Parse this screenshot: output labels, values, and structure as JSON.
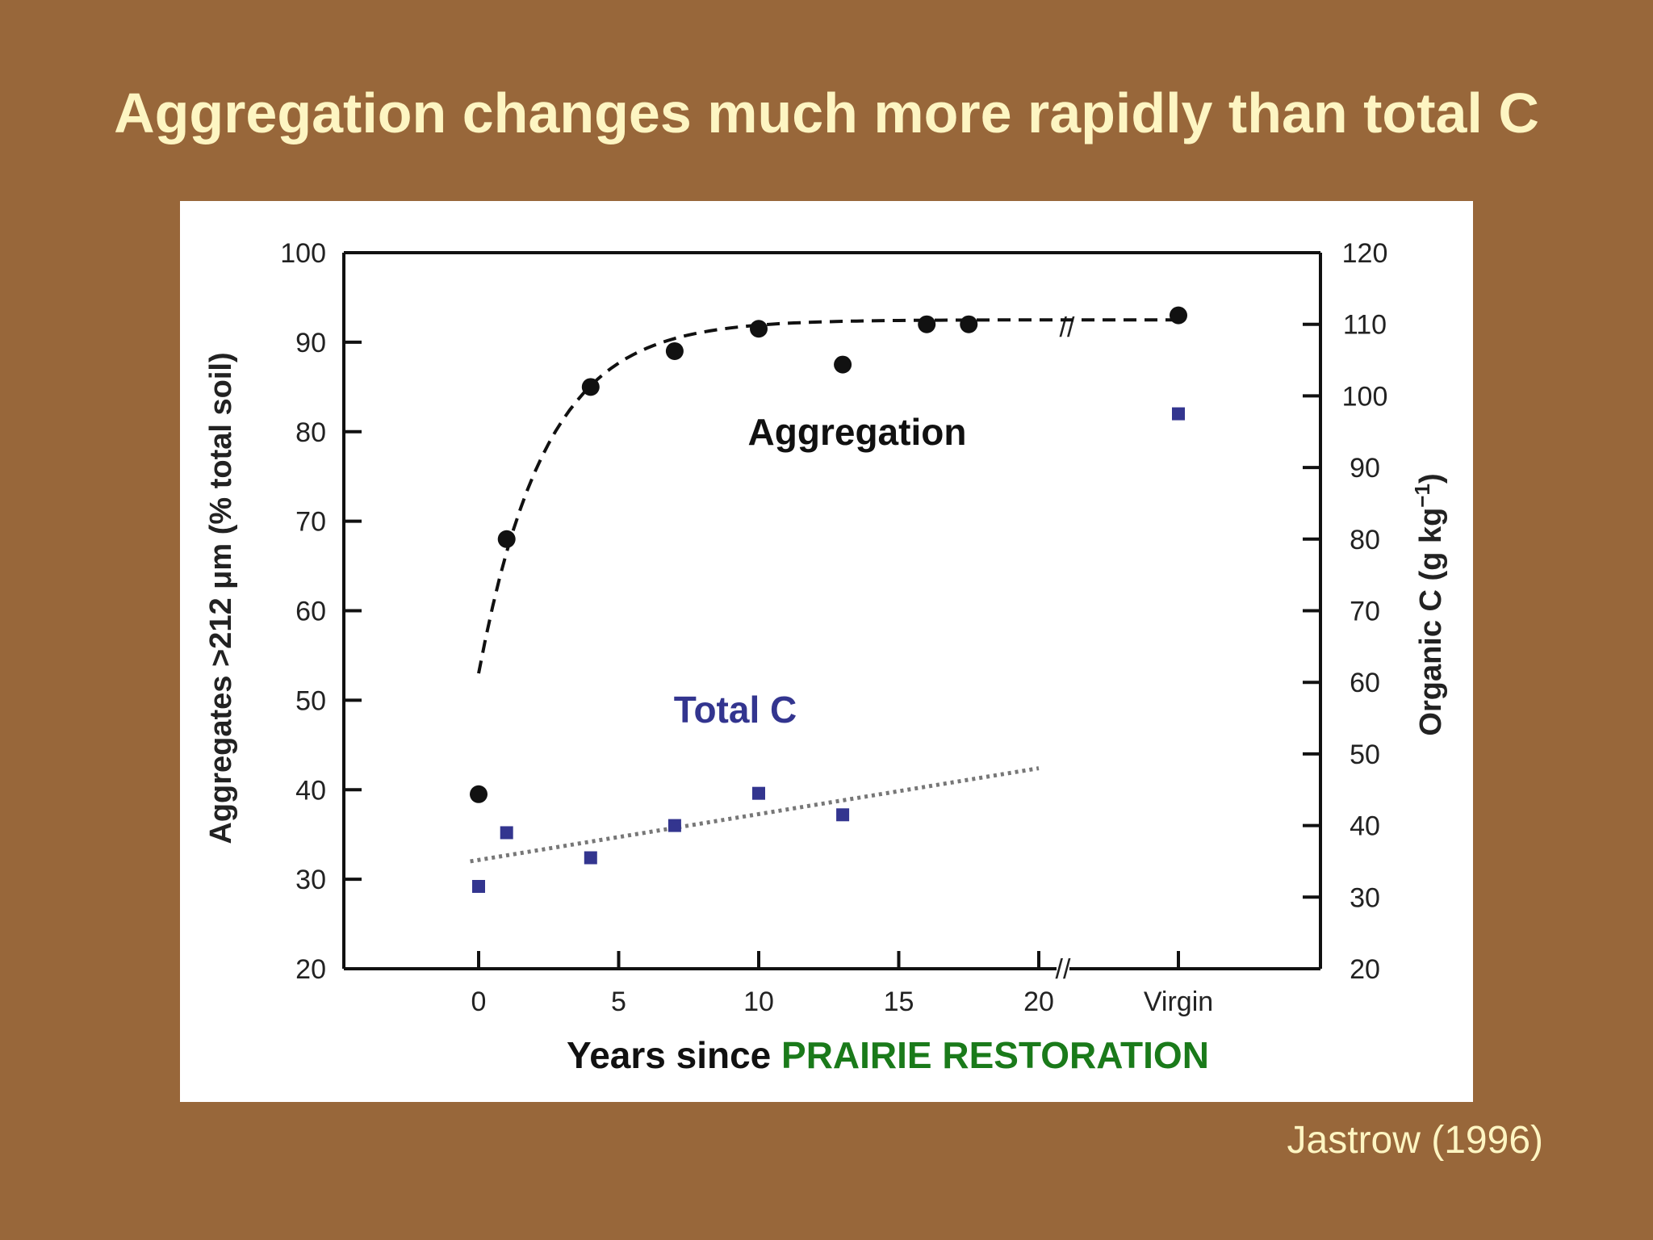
{
  "slide": {
    "title": "Aggregation changes much more rapidly than total C",
    "citation": "Jastrow (1996)"
  },
  "colors": {
    "background": "#98673a",
    "title": "#fdf5c2",
    "aggregation": "#111111",
    "total_c": "#33358f",
    "xlabel_highlight": "#1a7a1a"
  },
  "chart_data": {
    "type": "scatter",
    "x_ticks": [
      "0",
      "5",
      "10",
      "15",
      "20",
      "Virgin"
    ],
    "xlabel_prefix": "Years since ",
    "xlabel_highlight": "PRAIRIE RESTORATION",
    "y_left": {
      "label": "Aggregates >212 μm (% total soil)",
      "range": [
        20,
        100
      ],
      "ticks": [
        20,
        30,
        40,
        50,
        60,
        70,
        80,
        90,
        100
      ]
    },
    "y_right": {
      "label_main": "Organic C (g kg",
      "label_sup": "−1",
      "label_end": ")",
      "range": [
        20,
        120
      ],
      "ticks": [
        20,
        30,
        40,
        50,
        60,
        70,
        80,
        90,
        100,
        110,
        120
      ]
    },
    "axis_break": "//",
    "series": [
      {
        "name": "Aggregation",
        "axis": "left",
        "marker": "circle",
        "points": [
          [
            0,
            39.5
          ],
          [
            1,
            68
          ],
          [
            4,
            85
          ],
          [
            7,
            89
          ],
          [
            10,
            91.5
          ],
          [
            13,
            87.5
          ],
          [
            16,
            92
          ],
          [
            17.5,
            92
          ],
          [
            "Virgin",
            93
          ]
        ],
        "trend": {
          "style": "dashed",
          "kind": "exponential",
          "asymptote": 92.5,
          "start": 53,
          "rate": 0.42,
          "x_from": 0,
          "x_to": "Virgin"
        }
      },
      {
        "name": "Total C",
        "axis": "right",
        "marker": "square",
        "points": [
          [
            0,
            31.5
          ],
          [
            1,
            39
          ],
          [
            4,
            35.5
          ],
          [
            7,
            40
          ],
          [
            10,
            44.5
          ],
          [
            13,
            41.5
          ],
          [
            "Virgin",
            97.5
          ]
        ],
        "trend": {
          "style": "dotted",
          "kind": "linear",
          "x_from": -0.3,
          "x_to": 20,
          "y_from": 35,
          "y_to": 48
        }
      }
    ]
  }
}
